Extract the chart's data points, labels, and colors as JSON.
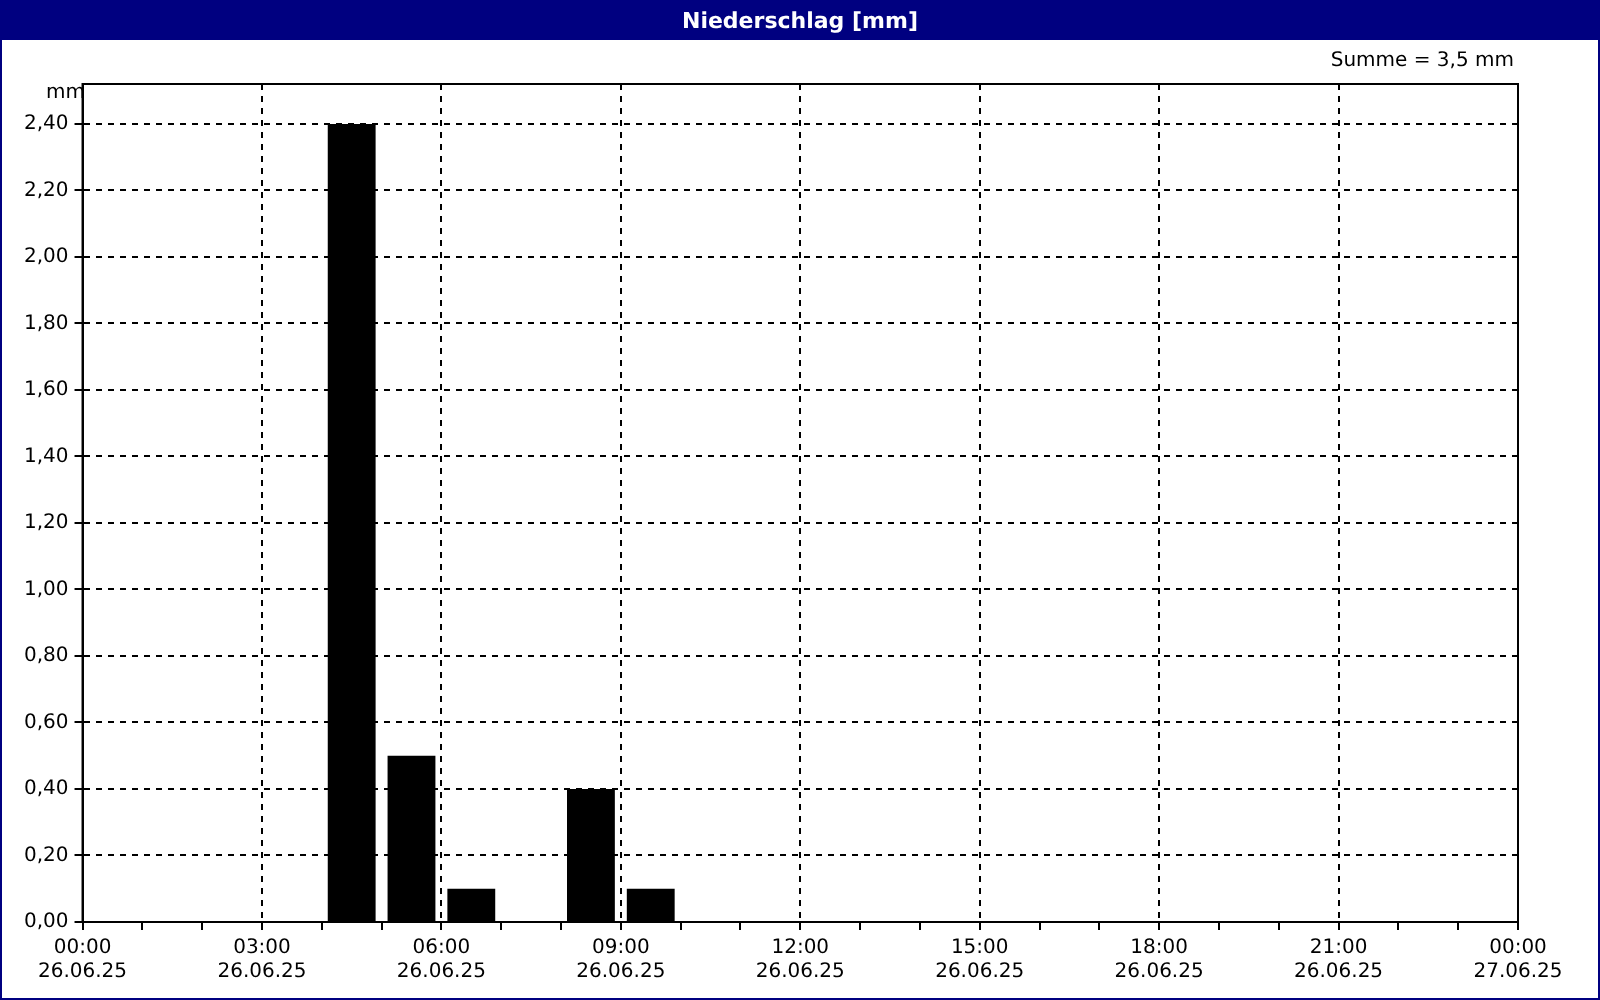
{
  "chart_data": {
    "type": "bar",
    "title": "Niederschlag [mm]",
    "ylabel": "mm",
    "annotations": [
      "Summe = 3,5 mm"
    ],
    "x": [
      "--06-26T04:30",
      "--06-26T05:30",
      "--06-26T06:30",
      "--06-26T08:30",
      "--06-26T09:30"
    ],
    "values": [
      2.4,
      0.5,
      0.1,
      0.4,
      0.1
    ],
    "color": "#000000",
    "xlim": [
      "--06-26T00:00",
      "--06-27T00:00"
    ],
    "xticks": [
      {
        "value": "--06-26T00:00",
        "label": "00:00\n26.06.25"
      },
      {
        "value": "--06-26T01:00",
        "label": null
      },
      {
        "value": "--06-26T02:00",
        "label": null
      },
      {
        "value": "--06-26T03:00",
        "label": "03:00\n26.06.25"
      },
      {
        "value": "--06-26T04:00",
        "label": null
      },
      {
        "value": "--06-26T05:00",
        "label": null
      },
      {
        "value": "--06-26T06:00",
        "label": "06:00\n26.06.25"
      },
      {
        "value": "--06-26T07:00",
        "label": null
      },
      {
        "value": "--06-26T08:00",
        "label": null
      },
      {
        "value": "--06-26T09:00",
        "label": "09:00\n26.06.25"
      },
      {
        "value": "--06-26T10:00",
        "label": null
      },
      {
        "value": "--06-26T11:00",
        "label": null
      },
      {
        "value": "--06-26T12:00",
        "label": "12:00\n26.06.25"
      },
      {
        "value": "--06-26T13:00",
        "label": null
      },
      {
        "value": "--06-26T14:00",
        "label": null
      },
      {
        "value": "--06-26T15:00",
        "label": "15:00\n26.06.25"
      },
      {
        "value": "--06-26T16:00",
        "label": null
      },
      {
        "value": "--06-26T17:00",
        "label": null
      },
      {
        "value": "--06-26T18:00",
        "label": "18:00\n26.06.25"
      },
      {
        "value": "--06-26T19:00",
        "label": null
      },
      {
        "value": "--06-26T20:00",
        "label": null
      },
      {
        "value": "--06-26T21:00",
        "label": "21:00\n26.06.25"
      },
      {
        "value": "--06-26T22:00",
        "label": null
      },
      {
        "value": "--06-26T23:00",
        "label": null
      },
      {
        "value": "--06-27T00:00",
        "label": "00:00\n27.06.25"
      }
    ],
    "ylim": [
      0,
      2.52
    ],
    "yticks": [
      {
        "value": 0,
        "label": "0,00"
      },
      {
        "value": 0.2,
        "label": "0,20"
      },
      {
        "value": 0.4,
        "label": "0,40"
      },
      {
        "value": 0.6,
        "label": "0,60"
      },
      {
        "value": 0.8,
        "label": "0,80"
      },
      {
        "value": 1,
        "label": "1,00"
      },
      {
        "value": 1.2,
        "label": "1,20"
      },
      {
        "value": 1.4,
        "label": "1,40"
      },
      {
        "value": 1.6,
        "label": "1,60"
      },
      {
        "value": 1.8,
        "label": "1,80"
      },
      {
        "value": 2,
        "label": "2,00"
      },
      {
        "value": 2.2,
        "label": "2,20"
      },
      {
        "value": 2.4,
        "label": "2,40"
      }
    ],
    "grid": true,
    "legend": false
  }
}
